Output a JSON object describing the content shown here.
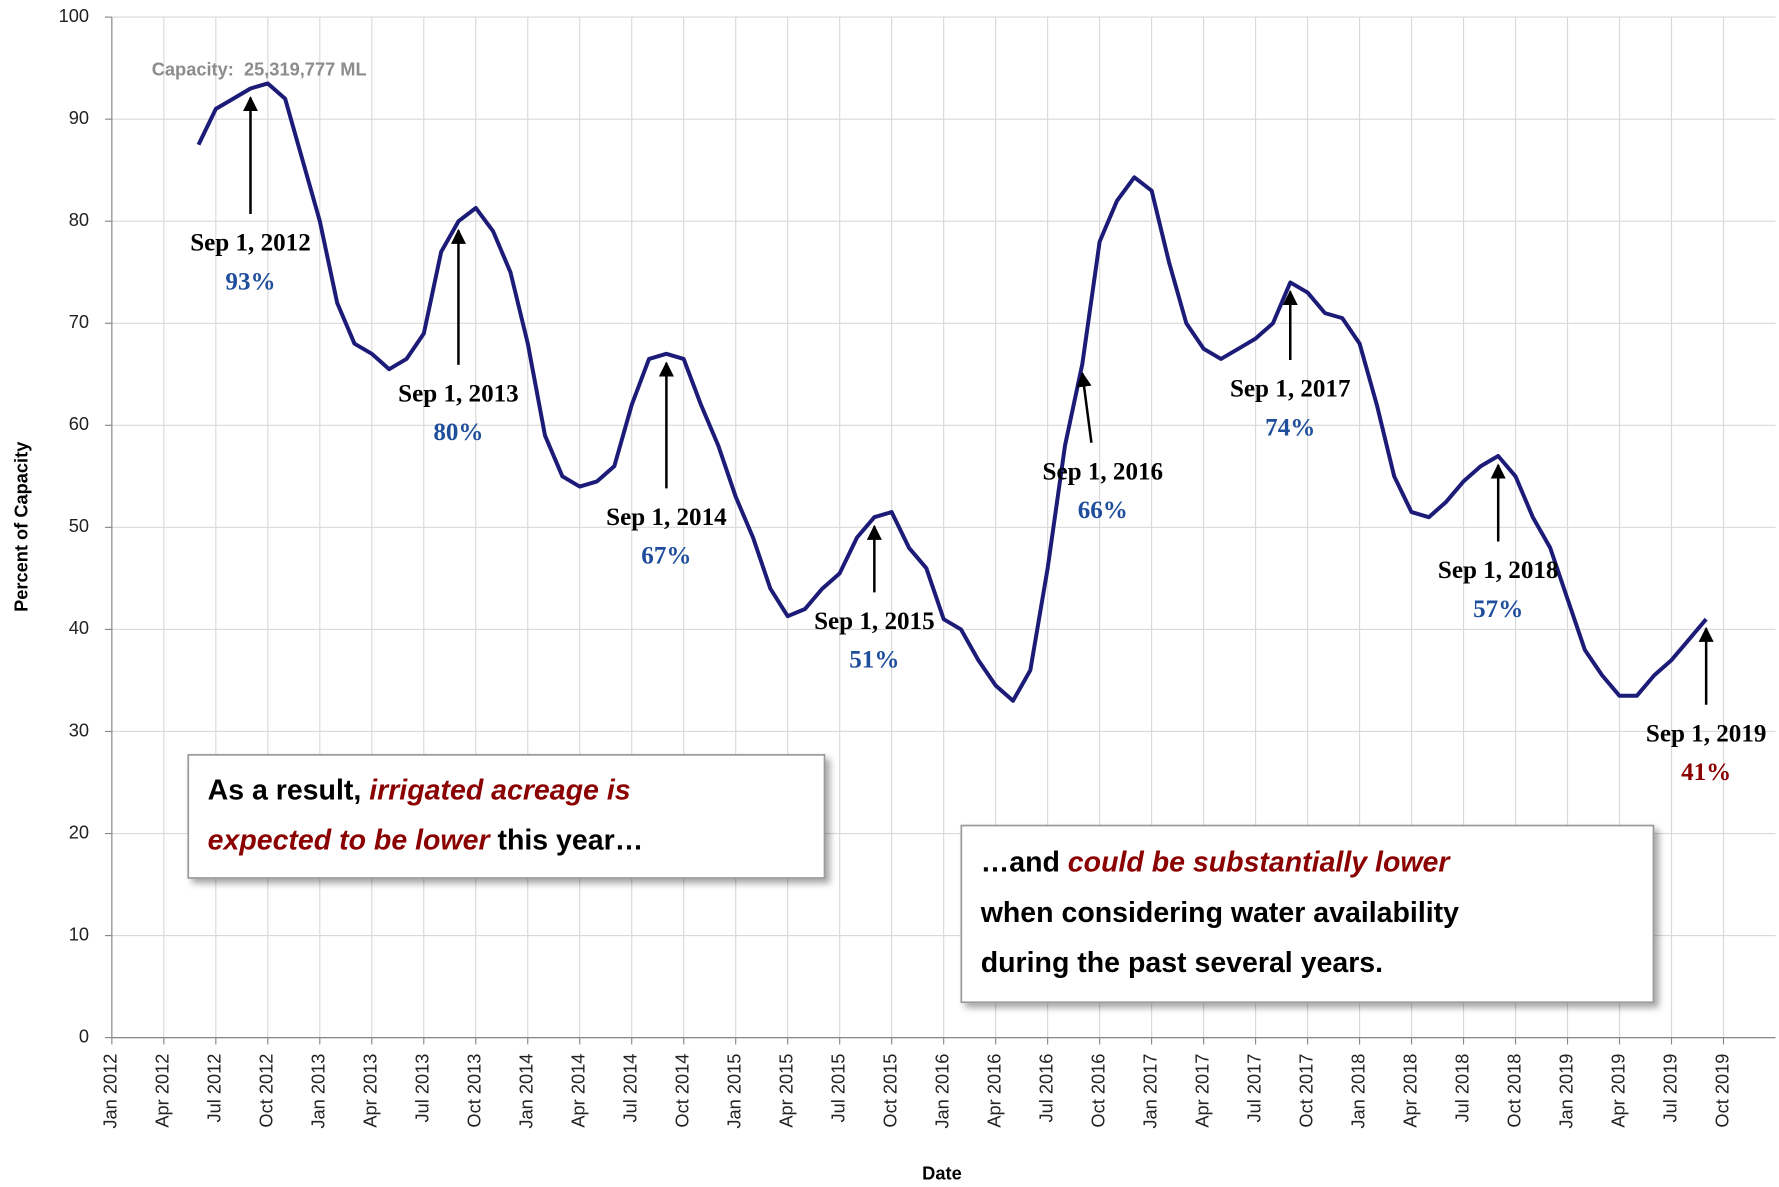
{
  "chart_data": {
    "type": "line",
    "xlabel": "Date",
    "ylabel": "Percent of Capacity",
    "note": "Capacity:  25,319,777 ML",
    "grid": true,
    "xlim": [
      "2012-01",
      "2020-01"
    ],
    "ylim": [
      0,
      100
    ],
    "yticks": [
      0,
      10,
      20,
      30,
      40,
      50,
      60,
      70,
      80,
      90,
      100
    ],
    "xticks": [
      {
        "value": "2012-01",
        "label": "Jan 2012"
      },
      {
        "value": "2012-04",
        "label": "Apr 2012"
      },
      {
        "value": "2012-07",
        "label": "Jul 2012"
      },
      {
        "value": "2012-10",
        "label": "Oct 2012"
      },
      {
        "value": "2013-01",
        "label": "Jan 2013"
      },
      {
        "value": "2013-04",
        "label": "Apr 2013"
      },
      {
        "value": "2013-07",
        "label": "Jul 2013"
      },
      {
        "value": "2013-10",
        "label": "Oct 2013"
      },
      {
        "value": "2014-01",
        "label": "Jan 2014"
      },
      {
        "value": "2014-04",
        "label": "Apr 2014"
      },
      {
        "value": "2014-07",
        "label": "Jul 2014"
      },
      {
        "value": "2014-10",
        "label": "Oct 2014"
      },
      {
        "value": "2015-01",
        "label": "Jan 2015"
      },
      {
        "value": "2015-04",
        "label": "Apr 2015"
      },
      {
        "value": "2015-07",
        "label": "Jul 2015"
      },
      {
        "value": "2015-10",
        "label": "Oct 2015"
      },
      {
        "value": "2016-01",
        "label": "Jan 2016"
      },
      {
        "value": "2016-04",
        "label": "Apr 2016"
      },
      {
        "value": "2016-07",
        "label": "Jul 2016"
      },
      {
        "value": "2016-10",
        "label": "Oct 2016"
      },
      {
        "value": "2017-01",
        "label": "Jan 2017"
      },
      {
        "value": "2017-04",
        "label": "Apr 2017"
      },
      {
        "value": "2017-07",
        "label": "Jul 2017"
      },
      {
        "value": "2017-10",
        "label": "Oct 2017"
      },
      {
        "value": "2018-01",
        "label": "Jan 2018"
      },
      {
        "value": "2018-04",
        "label": "Apr 2018"
      },
      {
        "value": "2018-07",
        "label": "Jul 2018"
      },
      {
        "value": "2018-10",
        "label": "Oct 2018"
      },
      {
        "value": "2019-01",
        "label": "Jan 2019"
      },
      {
        "value": "2019-04",
        "label": "Apr 2019"
      },
      {
        "value": "2019-07",
        "label": "Jul 2019"
      },
      {
        "value": "2019-10",
        "label": "Oct 2019"
      }
    ],
    "x": [
      "2012-06",
      "2012-07",
      "2012-08",
      "2012-09",
      "2012-10",
      "2012-11",
      "2012-12",
      "2013-01",
      "2013-02",
      "2013-03",
      "2013-04",
      "2013-05",
      "2013-06",
      "2013-07",
      "2013-08",
      "2013-09",
      "2013-10",
      "2013-11",
      "2013-12",
      "2014-01",
      "2014-02",
      "2014-03",
      "2014-04",
      "2014-05",
      "2014-06",
      "2014-07",
      "2014-08",
      "2014-09",
      "2014-10",
      "2014-11",
      "2014-12",
      "2015-01",
      "2015-02",
      "2015-03",
      "2015-04",
      "2015-05",
      "2015-06",
      "2015-07",
      "2015-08",
      "2015-09",
      "2015-10",
      "2015-11",
      "2015-12",
      "2016-01",
      "2016-02",
      "2016-03",
      "2016-04",
      "2016-05",
      "2016-06",
      "2016-07",
      "2016-08",
      "2016-09",
      "2016-10",
      "2016-11",
      "2016-12",
      "2017-01",
      "2017-02",
      "2017-03",
      "2017-04",
      "2017-05",
      "2017-06",
      "2017-07",
      "2017-08",
      "2017-09",
      "2017-10",
      "2017-11",
      "2017-12",
      "2018-01",
      "2018-02",
      "2018-03",
      "2018-04",
      "2018-05",
      "2018-06",
      "2018-07",
      "2018-08",
      "2018-09",
      "2018-10",
      "2018-11",
      "2018-12",
      "2019-01",
      "2019-02",
      "2019-03",
      "2019-04",
      "2019-05",
      "2019-06",
      "2019-07",
      "2019-08",
      "2019-09"
    ],
    "series": [
      {
        "color": "#1c1c78",
        "values": [
          87.5,
          91,
          92,
          93,
          93.5,
          92,
          86,
          80,
          72,
          68,
          67,
          65.5,
          66.5,
          69,
          77,
          80,
          81.3,
          79,
          75,
          68,
          59,
          55,
          54,
          54.5,
          56,
          62,
          66.5,
          67,
          66.5,
          62,
          58,
          53,
          49,
          44,
          41.3,
          42,
          44,
          45.5,
          49,
          51,
          51.5,
          48,
          46,
          41,
          40,
          37,
          34.5,
          33,
          36,
          46,
          58,
          66,
          78,
          82,
          84.3,
          83,
          76,
          70,
          67.5,
          66.5,
          67.5,
          68.5,
          70,
          74,
          73,
          71,
          70.5,
          68,
          62,
          55,
          51.5,
          51,
          52.5,
          54.5,
          56,
          57,
          55,
          51,
          48,
          43,
          38,
          35.5,
          33.5,
          33.5,
          35.5,
          37,
          39,
          41
        ]
      }
    ],
    "annotations": [
      {
        "text": "Sep 1, 2012",
        "x": "2012-09",
        "value": 93,
        "value_label": "93%",
        "color": "#1f4e9c"
      },
      {
        "text": "Sep 1, 2013",
        "x": "2013-09",
        "value": 80,
        "value_label": "80%",
        "color": "#1f4e9c"
      },
      {
        "text": "Sep 1, 2014",
        "x": "2014-09",
        "value": 67,
        "value_label": "67%",
        "color": "#1f4e9c"
      },
      {
        "text": "Sep 1, 2015",
        "x": "2015-09",
        "value": 51,
        "value_label": "51%",
        "color": "#1f4e9c"
      },
      {
        "text": "Sep 1, 2016",
        "x": "2016-09",
        "value": 66,
        "value_label": "66%",
        "color": "#1f4e9c"
      },
      {
        "text": "Sep 1, 2017",
        "x": "2017-09",
        "value": 74,
        "value_label": "74%",
        "color": "#1f4e9c"
      },
      {
        "text": "Sep 1, 2018",
        "x": "2018-09",
        "value": 57,
        "value_label": "57%",
        "color": "#1f4e9c"
      },
      {
        "text": "Sep 1, 2019",
        "x": "2019-09",
        "value": 41,
        "value_label": "41%",
        "color": "#8b0000"
      }
    ],
    "callouts": [
      {
        "lines": [
          [
            {
              "text": "As a result, "
            },
            {
              "text": "irrigated acreage is",
              "emphasis": true
            }
          ],
          [
            {
              "text": "expected to be lower",
              "emphasis": true
            },
            {
              "text": " this year…"
            }
          ]
        ]
      },
      {
        "lines": [
          [
            {
              "text": "…and "
            },
            {
              "text": "could be substantially lower",
              "emphasis": true
            }
          ],
          [
            {
              "text": "when considering water availability"
            }
          ],
          [
            {
              "text": "during the past several years."
            }
          ]
        ]
      }
    ]
  }
}
